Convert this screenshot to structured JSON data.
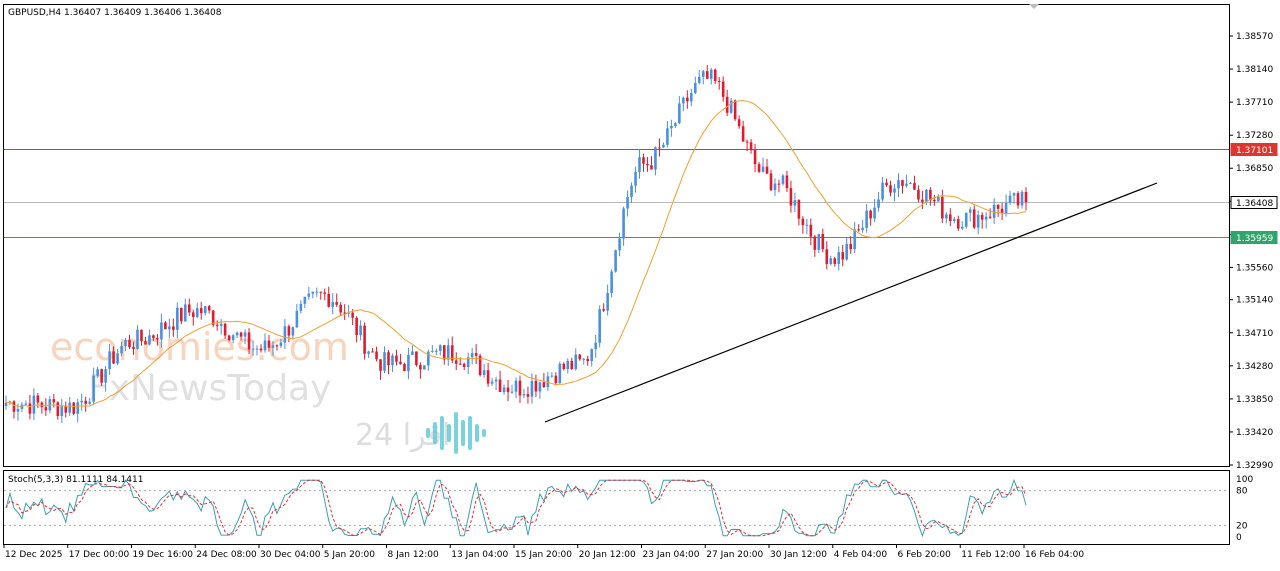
{
  "chart_data": {
    "type": "candlestick",
    "header": "GBPUSD,H4  1.36407 1.36409 1.36406 1.36408",
    "symbol": "GBPUSD",
    "timeframe": "H4",
    "ylim": [
      1.3299,
      1.3878
    ],
    "y_ticks": [
      "1.38570",
      "1.38140",
      "1.37710",
      "1.37280",
      "1.36850",
      "1.36420",
      "1.35990",
      "1.35560",
      "1.35140",
      "1.34710",
      "1.34280",
      "1.33850",
      "1.33420",
      "1.32990"
    ],
    "x_ticks": [
      "12 Dec 2025",
      "17 Dec 00:00",
      "19 Dec 16:00",
      "24 Dec 08:00",
      "30 Dec 04:00",
      "5 Jan 20:00",
      "8 Jan 12:00",
      "13 Jan 04:00",
      "15 Jan 20:00",
      "20 Jan 12:00",
      "23 Jan 04:00",
      "27 Jan 20:00",
      "30 Jan 12:00",
      "4 Feb 04:00",
      "6 Feb 20:00",
      "11 Feb 12:00",
      "16 Feb 04:00"
    ],
    "price_levels": [
      {
        "label": "1.37101",
        "value": 1.37101,
        "color": "#e0342f"
      },
      {
        "label": "1.36408",
        "value": 1.36408,
        "color": "#000000"
      },
      {
        "label": "1.35959",
        "value": 1.35959,
        "color": "#2ea56b"
      }
    ],
    "key_closes": [
      {
        "x": "12 Dec 2025",
        "close": 1.338
      },
      {
        "x": "17 Dec 00:00",
        "close": 1.3375
      },
      {
        "x": "19 Dec 16:00",
        "close": 1.346
      },
      {
        "x": "24 Dec 08:00",
        "close": 1.35
      },
      {
        "x": "30 Dec 04:00",
        "close": 1.345
      },
      {
        "x": "5 Jan 20:00",
        "close": 1.352
      },
      {
        "x": "8 Jan 12:00",
        "close": 1.343
      },
      {
        "x": "13 Jan 04:00",
        "close": 1.3445
      },
      {
        "x": "15 Jan 20:00",
        "close": 1.34
      },
      {
        "x": "20 Jan 12:00",
        "close": 1.343
      },
      {
        "x": "23 Jan 04:00",
        "close": 1.369
      },
      {
        "x": "27 Jan 20:00",
        "close": 1.38
      },
      {
        "x": "30 Jan 12:00",
        "close": 1.367
      },
      {
        "x": "4 Feb 04:00",
        "close": 1.357
      },
      {
        "x": "6 Feb 20:00",
        "close": 1.367
      },
      {
        "x": "11 Feb 12:00",
        "close": 1.362
      },
      {
        "x": "16 Feb 04:00",
        "close": 1.3641
      }
    ],
    "stochastic": {
      "label": "Stoch(5,3,3) 81.1111 84.1411",
      "ylim": [
        0,
        100
      ],
      "ticks": [
        "100",
        "80",
        "20",
        "0"
      ],
      "levels": [
        80,
        20
      ]
    },
    "watermarks": [
      "economies.com",
      "FxNewsToday",
      "اقرا 24"
    ]
  }
}
